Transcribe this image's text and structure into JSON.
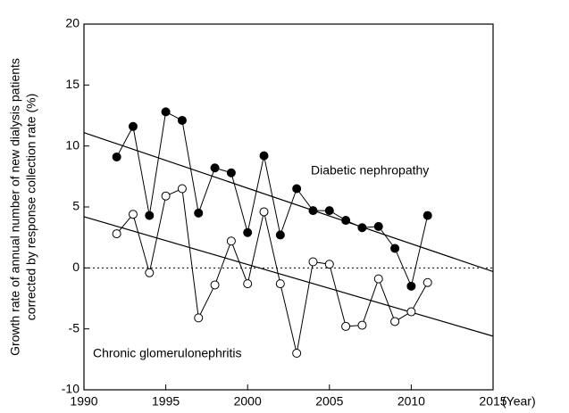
{
  "chart_data": {
    "type": "line",
    "x_label": "(Year)",
    "y_label": [
      "Growth rate of annual number of new dialysis patients",
      "corrected by response collection rate (%)"
    ],
    "x": [
      1992,
      1993,
      1994,
      1995,
      1996,
      1997,
      1998,
      1999,
      2000,
      2001,
      2002,
      2003,
      2004,
      2005,
      2006,
      2007,
      2008,
      2009,
      2010,
      2011
    ],
    "series": [
      {
        "name": "Diabetic nephropathy",
        "color": "#000000",
        "marker": "filled",
        "values": [
          9.1,
          11.6,
          4.3,
          12.8,
          12.1,
          4.5,
          8.2,
          7.8,
          2.9,
          9.2,
          2.7,
          6.5,
          4.7,
          4.7,
          3.9,
          3.3,
          3.4,
          1.6,
          -1.5,
          4.3
        ]
      },
      {
        "name": "Chronic glomerulonephritis",
        "color": "#000000",
        "marker": "open",
        "values": [
          2.8,
          4.4,
          -0.4,
          5.9,
          6.5,
          -4.1,
          -1.4,
          2.2,
          -1.3,
          4.6,
          -1.3,
          -7.0,
          0.5,
          0.3,
          -4.8,
          -4.7,
          -0.9,
          -4.4,
          -3.6,
          -1.2
        ]
      }
    ],
    "trend_lines": [
      {
        "x": [
          1990,
          2015
        ],
        "values": [
          11.1,
          -0.3
        ]
      },
      {
        "x": [
          1990,
          2015
        ],
        "values": [
          4.2,
          -5.6
        ]
      }
    ],
    "reference_line": 0,
    "xlim": [
      1990,
      2015
    ],
    "xticks": [
      1990,
      1995,
      2000,
      2005,
      2010,
      2015
    ],
    "ylim": [
      -10,
      20
    ],
    "yticks": [
      -10,
      -5,
      0,
      5,
      10,
      15,
      20
    ]
  }
}
